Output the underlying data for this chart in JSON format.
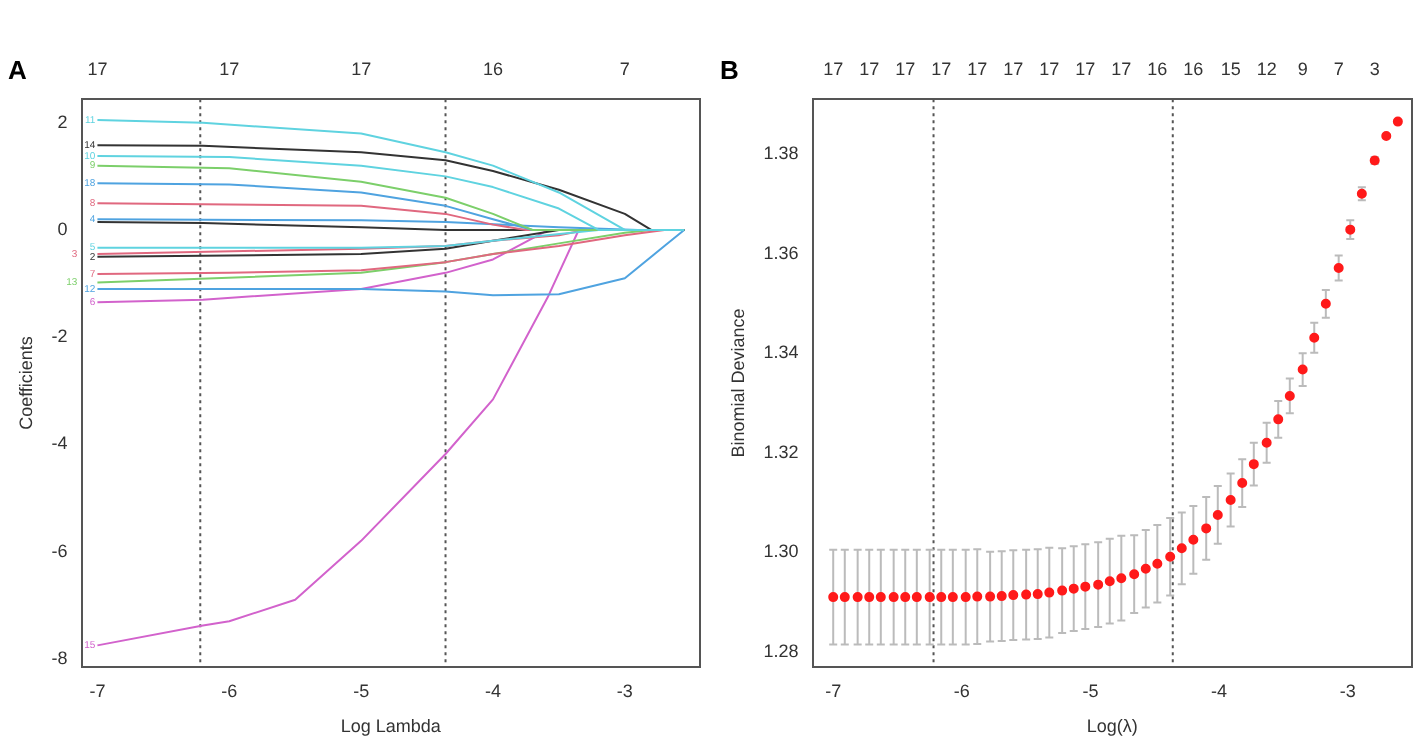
{
  "chart_data": [
    {
      "type": "line",
      "title": "A",
      "xlabel": "Log Lambda",
      "ylabel": "Coefficients",
      "xlim": [
        -7.12,
        -2.43
      ],
      "xticks": [
        -7,
        -6,
        -5,
        -4,
        -3
      ],
      "annotations": [
        "17",
        "17",
        "17",
        "16",
        "7"
      ],
      "ylim": [
        -8.15,
        2.44
      ],
      "yticks": [
        -8,
        -6,
        -4,
        -2,
        0,
        2
      ],
      "grid": false,
      "legend": false,
      "marker": "none",
      "line_style": "solid",
      "ref_lines": [
        {
          "axis": "x",
          "value": -6.22,
          "line_style": "dotted",
          "color": "#555555"
        },
        {
          "axis": "x",
          "value": -4.36,
          "line_style": "dotted",
          "color": "#555555"
        }
      ],
      "series": [
        {
          "name": "11",
          "color": "#5fd3e0",
          "x": [
            -7,
            -6.2,
            -5,
            -4.36,
            -4,
            -3.5,
            -3,
            -2.55
          ],
          "values": [
            2.05,
            2,
            1.8,
            1.45,
            1.2,
            0.7,
            0,
            0
          ]
        },
        {
          "name": "14",
          "color": "#333333",
          "x": [
            -7,
            -6.2,
            -5,
            -4.36,
            -4,
            -3.5,
            -3,
            -2.8,
            -2.55
          ],
          "values": [
            1.58,
            1.57,
            1.45,
            1.3,
            1.1,
            0.75,
            0.3,
            0,
            0
          ]
        },
        {
          "name": "10",
          "color": "#5fd3e0",
          "x": [
            -7,
            -6,
            -5,
            -4.36,
            -4,
            -3.5,
            -3.2,
            -2.55
          ],
          "values": [
            1.38,
            1.36,
            1.2,
            1,
            0.8,
            0.4,
            0,
            0
          ]
        },
        {
          "name": "9",
          "color": "#7ccf6a",
          "x": [
            -7,
            -6,
            -5,
            -4.36,
            -4,
            -3.7,
            -2.55
          ],
          "values": [
            1.2,
            1.15,
            0.9,
            0.6,
            0.3,
            0,
            0
          ]
        },
        {
          "name": "18",
          "color": "#4fa3e0",
          "x": [
            -7,
            -6,
            -5,
            -4.36,
            -4,
            -3.7,
            -2.55
          ],
          "values": [
            0.87,
            0.85,
            0.7,
            0.45,
            0.2,
            0,
            0
          ]
        },
        {
          "name": "8",
          "color": "#e0687f",
          "x": [
            -7,
            -5,
            -4.36,
            -4,
            -3.75,
            -2.55
          ],
          "values": [
            0.5,
            0.45,
            0.3,
            0.1,
            0,
            0
          ]
        },
        {
          "name": "4",
          "color": "#4fa3e0",
          "x": [
            -7,
            -5,
            -4.36,
            -3.5,
            -2.9,
            -2.55
          ],
          "values": [
            0.2,
            0.18,
            0.15,
            0.05,
            0,
            0
          ]
        },
        {
          "color": "#333333",
          "x": [
            -7,
            -6.2,
            -5,
            -4.36,
            -2.55
          ],
          "values": [
            0.15,
            0.13,
            0.05,
            0,
            0
          ]
        },
        {
          "name": "5",
          "color": "#5fd3e0",
          "x": [
            -7,
            -5,
            -4.36,
            -4,
            -3.2,
            -2.55
          ],
          "values": [
            -0.33,
            -0.33,
            -0.3,
            -0.2,
            0,
            0
          ]
        },
        {
          "name": "3",
          "color": "#e0687f",
          "x": [
            -7,
            -5,
            -4.36,
            -4,
            -3.5,
            -3.3,
            -2.55
          ],
          "values": [
            -0.45,
            -0.35,
            -0.3,
            -0.2,
            -0.1,
            0,
            0
          ]
        },
        {
          "name": "2",
          "color": "#333333",
          "x": [
            -7,
            -5,
            -4.36,
            -4,
            -3.5,
            -2.55
          ],
          "values": [
            -0.5,
            -0.45,
            -0.35,
            -0.2,
            0,
            0
          ]
        },
        {
          "name": "7",
          "color": "#e0687f",
          "x": [
            -7,
            -6,
            -5,
            -4.36,
            -4,
            -3.5,
            -3,
            -2.7,
            -2.55
          ],
          "values": [
            -0.82,
            -0.8,
            -0.75,
            -0.6,
            -0.45,
            -0.3,
            -0.1,
            0,
            0
          ]
        },
        {
          "name": "13",
          "color": "#7ccf6a",
          "x": [
            -7,
            -5,
            -4.36,
            -4,
            -3.5,
            -3,
            -2.8,
            -2.55
          ],
          "values": [
            -0.98,
            -0.8,
            -0.6,
            -0.45,
            -0.25,
            -0.05,
            0,
            0
          ]
        },
        {
          "name": "12",
          "color": "#4fa3e0",
          "x": [
            -7,
            -5,
            -4.36,
            -4,
            -3.5,
            -3,
            -2.7,
            -2.55
          ],
          "values": [
            -1.1,
            -1.1,
            -1.15,
            -1.22,
            -1.2,
            -0.9,
            -0.3,
            0
          ]
        },
        {
          "name": "6",
          "color": "#d262cc",
          "x": [
            -7,
            -6.2,
            -5,
            -4.36,
            -4,
            -3.58,
            -2.55
          ],
          "values": [
            -1.35,
            -1.3,
            -1.1,
            -0.8,
            -0.55,
            0,
            0
          ]
        },
        {
          "name": "15",
          "color": "#d262cc",
          "x": [
            -7,
            -6.2,
            -6,
            -5.5,
            -5,
            -4.36,
            -4,
            -3.58,
            -3.35,
            -2.55
          ],
          "values": [
            -7.75,
            -7.38,
            -7.3,
            -6.9,
            -5.8,
            -4.18,
            -3.16,
            -1.23,
            0,
            0
          ]
        }
      ]
    },
    {
      "type": "scatter",
      "title": "B",
      "xlabel": "Log(λ)",
      "ylabel": "Binomial Deviance",
      "xlim": [
        -7.16,
        -2.5
      ],
      "xticks": [
        -7,
        -6,
        -5,
        -4,
        -3
      ],
      "annotations": [
        "17",
        "17",
        "17",
        "17",
        "17",
        "17",
        "17",
        "17",
        "17",
        "16",
        "16",
        "15",
        "12",
        "9",
        "7",
        "3"
      ],
      "ylim": [
        1.277,
        1.391
      ],
      "yticks": [
        1.28,
        {
          "value": 1.3,
          "label": "1.30"
        },
        1.32,
        1.34,
        1.36,
        1.38
      ],
      "grid": false,
      "legend": false,
      "marker": "circle",
      "ref_lines": [
        {
          "axis": "x",
          "value": -6.22,
          "line_style": "dotted",
          "color": "#555555"
        },
        {
          "axis": "x",
          "value": -4.36,
          "line_style": "dotted",
          "color": "#555555"
        }
      ],
      "series": [
        {
          "color": "#ff1a1a",
          "x": [
            -7,
            -6.91,
            -6.81,
            -6.72,
            -6.63,
            -6.53,
            -6.44,
            -6.35,
            -6.25,
            -6.16,
            -6.07,
            -5.97,
            -5.88,
            -5.78,
            -5.69,
            -5.6,
            -5.5,
            -5.41,
            -5.32,
            -5.22,
            -5.13,
            -5.04,
            -4.94,
            -4.85,
            -4.76,
            -4.66,
            -4.57,
            -4.48,
            -4.38,
            -4.29,
            -4.2,
            -4.1,
            -4.01,
            -3.91,
            -3.82,
            -3.73,
            -3.63,
            -3.54,
            -3.45,
            -3.35,
            -3.26,
            -3.17,
            -3.07,
            -2.98,
            -2.89,
            -2.79,
            -2.7,
            -2.61
          ],
          "values": [
            1.291,
            1.291,
            1.291,
            1.291,
            1.291,
            1.291,
            1.291,
            1.291,
            1.291,
            1.291,
            1.291,
            1.291,
            1.2911,
            1.2911,
            1.2912,
            1.2914,
            1.2915,
            1.2916,
            1.2919,
            1.2923,
            1.2927,
            1.2931,
            1.2935,
            1.2942,
            1.2948,
            1.2956,
            1.2967,
            1.2977,
            1.2991,
            1.3008,
            1.3025,
            1.3048,
            1.3075,
            1.3105,
            1.3139,
            1.3177,
            1.322,
            1.3267,
            1.3314,
            1.3367,
            1.3431,
            1.3499,
            1.3571,
            1.3648,
            1.372,
            1.3787,
            1.3836,
            1.3865
          ],
          "errors": [
            0.0095,
            0.0095,
            0.0095,
            0.0095,
            0.0095,
            0.0095,
            0.0095,
            0.0095,
            0.0095,
            0.0095,
            0.0095,
            0.0095,
            0.0095,
            0.009,
            0.009,
            0.009,
            0.009,
            0.009,
            0.009,
            0.0085,
            0.0085,
            0.0085,
            0.0085,
            0.0085,
            0.0085,
            0.0078,
            0.0078,
            0.0078,
            0.0078,
            0.0072,
            0.0068,
            0.0063,
            0.0058,
            0.0053,
            0.0048,
            0.0043,
            0.004,
            0.0037,
            0.0035,
            0.0033,
            0.003,
            0.0028,
            0.0025,
            0.0019,
            0.0013,
            0.0007,
            0.0004,
            0.0003
          ]
        }
      ]
    }
  ]
}
